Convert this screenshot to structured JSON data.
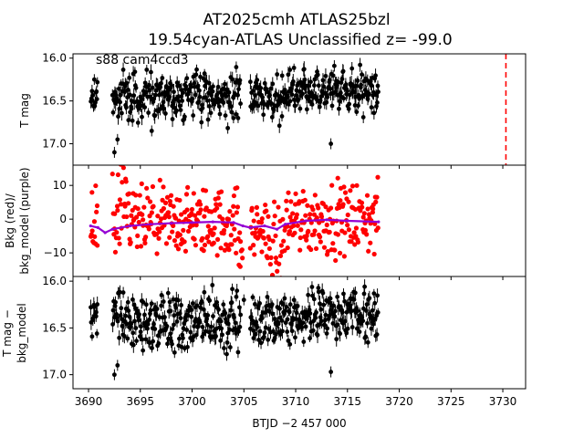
{
  "title_line1": "AT2025cmh  ATLAS25bzl",
  "title_line2": "19.54cyan-ATLAS Unclassified z= -99.0",
  "chart_data": [
    {
      "type": "scatter",
      "panel": "top",
      "ylabel": "T mag",
      "annotation": "s88 cam4ccd3",
      "y_inverted": true,
      "xlim": [
        3688.5,
        3732.2
      ],
      "ylim": [
        17.25,
        15.95
      ],
      "yticks": [
        16.0,
        16.5,
        17.0
      ],
      "ytick_labels": [
        "16.0",
        "16.5",
        "17.0"
      ],
      "marker_color": "#000000",
      "vline": {
        "x": 3730.3,
        "color": "#ff0000",
        "style": "dashed"
      },
      "segments": [
        {
          "x_start": 3690.2,
          "x_end": 3690.9,
          "center": 16.42,
          "spread": 0.1
        },
        {
          "x_start": 3692.3,
          "x_end": 3704.7,
          "center": 16.45,
          "spread": 0.14
        },
        {
          "x_start": 3705.6,
          "x_end": 3709.3,
          "center": 16.47,
          "spread": 0.13
        },
        {
          "x_start": 3709.3,
          "x_end": 3718.0,
          "center": 16.38,
          "spread": 0.12
        }
      ],
      "outliers": [
        {
          "x": 3692.5,
          "y": 17.1
        },
        {
          "x": 3692.8,
          "y": 16.95
        },
        {
          "x": 3713.4,
          "y": 17.0
        },
        {
          "x": 3696.1,
          "y": 16.85
        }
      ]
    },
    {
      "type": "scatter",
      "panel": "middle",
      "ylabel_line1": "Bkg (red)/",
      "ylabel_line2": "bkg_model (purple)",
      "xlim": [
        3688.5,
        3732.2
      ],
      "ylim": [
        -17,
        16
      ],
      "yticks": [
        10,
        0,
        -10
      ],
      "ytick_labels": [
        "10",
        "0",
        "−10"
      ],
      "series": [
        {
          "name": "Bkg",
          "color": "#ff0000",
          "segments": [
            {
              "x_start": 3690.2,
              "x_end": 3690.9,
              "center": -2,
              "spread": 8
            },
            {
              "x_start": 3692.3,
              "x_end": 3694.0,
              "center": -1,
              "spread": 9
            },
            {
              "x_start": 3694.0,
              "x_end": 3704.5,
              "center": -1,
              "spread": 5
            },
            {
              "x_start": 3704.5,
              "x_end": 3704.9,
              "center": -10,
              "spread": 6
            },
            {
              "x_start": 3705.6,
              "x_end": 3707.2,
              "center": -3,
              "spread": 4
            },
            {
              "x_start": 3707.2,
              "x_end": 3709.0,
              "center": -9,
              "spread": 7
            },
            {
              "x_start": 3709.0,
              "x_end": 3718.0,
              "center": 0,
              "spread": 5
            }
          ]
        },
        {
          "name": "bkg_model",
          "color": "#9400d3",
          "x": [
            3690.2,
            3690.9,
            3691.6,
            3692.3,
            3694.0,
            3696.0,
            3698.0,
            3700.0,
            3702.0,
            3704.0,
            3704.9,
            3705.6,
            3707.0,
            3708.2,
            3709.0,
            3711.0,
            3713.0,
            3715.0,
            3718.0
          ],
          "y": [
            -2.0,
            -2.5,
            -4.0,
            -3.0,
            -2.0,
            -1.5,
            -1.2,
            -1.0,
            -0.8,
            -1.0,
            -2.0,
            -2.5,
            -2.0,
            -3.0,
            -1.5,
            -0.5,
            -0.2,
            -0.5,
            -0.8
          ]
        }
      ]
    },
    {
      "type": "scatter",
      "panel": "bottom",
      "ylabel_line1": "T mag −",
      "ylabel_line2": "bkg_model",
      "xlabel": "BTJD −2 457 000",
      "y_inverted": true,
      "xlim": [
        3688.5,
        3732.2
      ],
      "ylim": [
        17.15,
        15.95
      ],
      "yticks": [
        16.0,
        16.5,
        17.0
      ],
      "ytick_labels": [
        "16.0",
        "16.5",
        "17.0"
      ],
      "xticks": [
        3690,
        3695,
        3700,
        3705,
        3710,
        3715,
        3720,
        3725,
        3730
      ],
      "xtick_labels": [
        "3690",
        "3695",
        "3700",
        "3705",
        "3710",
        "3715",
        "3720",
        "3725",
        "3730"
      ],
      "marker_color": "#000000",
      "segments": [
        {
          "x_start": 3690.2,
          "x_end": 3690.9,
          "center": 16.38,
          "spread": 0.12
        },
        {
          "x_start": 3692.3,
          "x_end": 3704.7,
          "center": 16.42,
          "spread": 0.15
        },
        {
          "x_start": 3705.6,
          "x_end": 3709.3,
          "center": 16.45,
          "spread": 0.14
        },
        {
          "x_start": 3709.3,
          "x_end": 3718.0,
          "center": 16.36,
          "spread": 0.13
        }
      ],
      "outliers": [
        {
          "x": 3692.5,
          "y": 17.0
        },
        {
          "x": 3692.8,
          "y": 16.9
        },
        {
          "x": 3713.4,
          "y": 16.97
        },
        {
          "x": 3705.0,
          "y": 16.2
        }
      ]
    }
  ]
}
